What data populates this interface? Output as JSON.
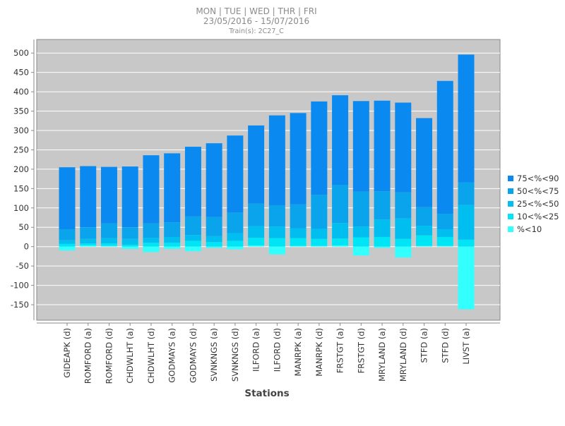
{
  "header": {
    "days": "MON | TUE | WED | THR | FRI",
    "date_range": "23/05/2016 - 15/07/2016",
    "trains": "Train(s): 2C27_C"
  },
  "chart_data": {
    "type": "bar",
    "stacked": true,
    "title": "MON | TUE | WED | THR | FRI",
    "subtitle": "23/05/2016 - 15/07/2016",
    "note": "Train(s): 2C27_C",
    "xlabel": "Stations",
    "ylabel": "",
    "ylim": [
      -190,
      535
    ],
    "yticks": [
      500,
      450,
      400,
      350,
      300,
      250,
      200,
      150,
      100,
      50,
      0,
      -50,
      -100,
      -150
    ],
    "grid": true,
    "legend_position": "right",
    "categories": [
      "GIDEAPK (d)",
      "ROMFORD (a)",
      "ROMFORD (d)",
      "CHDWLHT (a)",
      "CHDWLHT (d)",
      "GODMAYS (a)",
      "GODMAYS (d)",
      "SVNKNGS (a)",
      "SVNKNGS (d)",
      "ILFORD (a)",
      "ILFORD (d)",
      "MANRPK (a)",
      "MANRPK (d)",
      "FRSTGT (a)",
      "FRSTGT (d)",
      "MRYLAND (a)",
      "MRYLAND (d)",
      "STFD (a)",
      "STFD (d)",
      "LIVST (a)"
    ],
    "series": [
      {
        "name": "%<10",
        "color": "#33ffff",
        "values": [
          -10,
          3,
          2,
          -6,
          -14,
          -6,
          -12,
          -3,
          -7,
          3,
          -20,
          2,
          2,
          3,
          -23,
          -3,
          -28,
          2,
          2,
          -162
        ]
      },
      {
        "name": "10<%<25",
        "color": "#00e5f5",
        "values": [
          7,
          5,
          6,
          5,
          10,
          10,
          15,
          12,
          15,
          20,
          22,
          20,
          18,
          18,
          24,
          25,
          20,
          27,
          23,
          18
        ]
      },
      {
        "name": "25<%<50",
        "color": "#00bff0",
        "values": [
          10,
          12,
          14,
          15,
          13,
          15,
          15,
          15,
          20,
          30,
          30,
          25,
          26,
          40,
          28,
          45,
          53,
          25,
          20,
          90
        ]
      },
      {
        "name": "50<%<75",
        "color": "#0aa4ec",
        "values": [
          28,
          30,
          38,
          30,
          37,
          38,
          48,
          50,
          53,
          58,
          55,
          62,
          88,
          98,
          90,
          73,
          67,
          48,
          40,
          58
        ]
      },
      {
        "name": "75<%<90",
        "color": "#0a8af0",
        "values": [
          160,
          158,
          146,
          157,
          176,
          178,
          180,
          190,
          199,
          202,
          232,
          236,
          241,
          232,
          234,
          234,
          232,
          230,
          343,
          330
        ]
      }
    ]
  }
}
